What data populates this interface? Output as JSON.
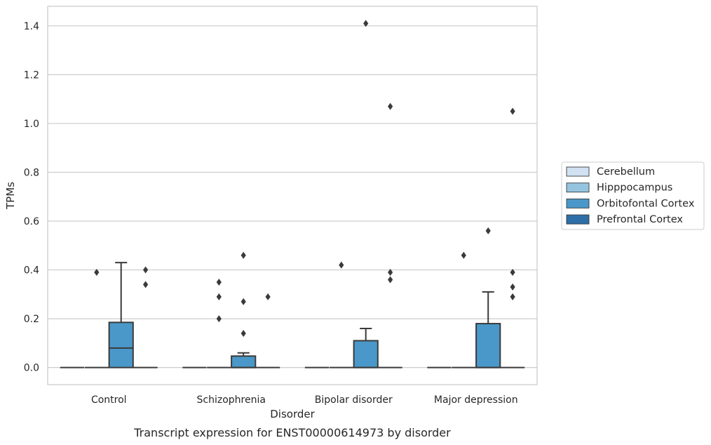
{
  "chart_data": {
    "type": "box",
    "title": "",
    "caption": "Transcript expression for ENST00000614973 by disorder",
    "xlabel": "Disorder",
    "ylabel": "TPMs",
    "ylim": [
      -0.07,
      1.48
    ],
    "yticks": [
      "0.0",
      "0.2",
      "0.4",
      "0.6",
      "0.8",
      "1.0",
      "1.2",
      "1.4"
    ],
    "ytick_values": [
      0.0,
      0.2,
      0.4,
      0.6,
      0.8,
      1.0,
      1.2,
      1.4
    ],
    "grid": "horizontal",
    "legend_position": "right",
    "categories": [
      "Control",
      "Schizophrenia",
      "Bipolar disorder",
      "Major depression"
    ],
    "series": [
      {
        "name": "Cerebellum",
        "color": "#d0e1f2",
        "boxes": [
          {
            "q1": 0,
            "median": 0,
            "q3": 0,
            "whisker_low": 0,
            "whisker_high": 0,
            "outliers": []
          },
          {
            "q1": 0,
            "median": 0,
            "q3": 0,
            "whisker_low": 0,
            "whisker_high": 0,
            "outliers": []
          },
          {
            "q1": 0,
            "median": 0,
            "q3": 0,
            "whisker_low": 0,
            "whisker_high": 0,
            "outliers": []
          },
          {
            "q1": 0,
            "median": 0,
            "q3": 0,
            "whisker_low": 0,
            "whisker_high": 0,
            "outliers": []
          }
        ]
      },
      {
        "name": "Hipppocampus",
        "color": "#94c4df",
        "boxes": [
          {
            "q1": 0,
            "median": 0,
            "q3": 0,
            "whisker_low": 0,
            "whisker_high": 0,
            "outliers": [
              0.39
            ]
          },
          {
            "q1": 0,
            "median": 0,
            "q3": 0,
            "whisker_low": 0,
            "whisker_high": 0,
            "outliers": [
              0.35,
              0.29,
              0.2
            ]
          },
          {
            "q1": 0,
            "median": 0,
            "q3": 0,
            "whisker_low": 0,
            "whisker_high": 0,
            "outliers": [
              0.42
            ]
          },
          {
            "q1": 0,
            "median": 0,
            "q3": 0,
            "whisker_low": 0,
            "whisker_high": 0,
            "outliers": [
              0.46
            ]
          }
        ]
      },
      {
        "name": "Orbitofontal Cortex",
        "color": "#4a98c9",
        "boxes": [
          {
            "q1": 0,
            "median": 0.08,
            "q3": 0.185,
            "whisker_low": 0,
            "whisker_high": 0.43,
            "outliers": []
          },
          {
            "q1": 0,
            "median": 0,
            "q3": 0.047,
            "whisker_low": 0,
            "whisker_high": 0.06,
            "outliers": [
              0.46,
              0.27,
              0.14
            ]
          },
          {
            "q1": 0,
            "median": 0,
            "q3": 0.11,
            "whisker_low": 0,
            "whisker_high": 0.16,
            "outliers": [
              1.41
            ]
          },
          {
            "q1": 0,
            "median": 0,
            "q3": 0.18,
            "whisker_low": 0,
            "whisker_high": 0.31,
            "outliers": [
              0.56
            ]
          }
        ]
      },
      {
        "name": "Prefrontal Cortex",
        "color": "#2e6fa7",
        "boxes": [
          {
            "q1": 0,
            "median": 0,
            "q3": 0,
            "whisker_low": 0,
            "whisker_high": 0,
            "outliers": [
              0.4,
              0.34
            ]
          },
          {
            "q1": 0,
            "median": 0,
            "q3": 0,
            "whisker_low": 0,
            "whisker_high": 0,
            "outliers": [
              0.29
            ]
          },
          {
            "q1": 0,
            "median": 0,
            "q3": 0,
            "whisker_low": 0,
            "whisker_high": 0,
            "outliers": [
              1.07,
              0.39,
              0.36
            ]
          },
          {
            "q1": 0,
            "median": 0,
            "q3": 0,
            "whisker_low": 0,
            "whisker_high": 0,
            "outliers": [
              1.05,
              0.39,
              0.33,
              0.29
            ]
          }
        ]
      }
    ]
  }
}
